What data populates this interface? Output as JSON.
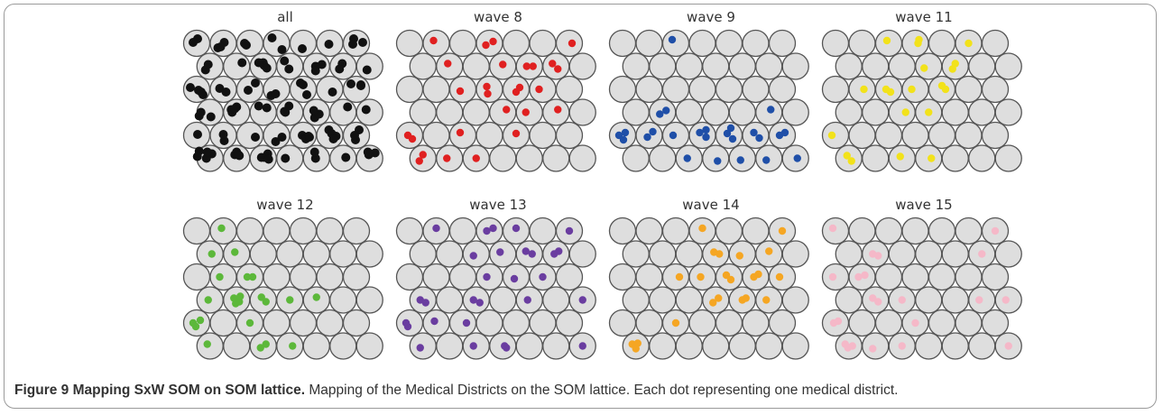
{
  "figure": {
    "caption_title": "Figure 9 Mapping SxW SOM on SOM lattice.",
    "caption_text": " Mapping of the Medical Districts on the SOM lattice. Each dot representing one medical district."
  },
  "panels": [
    {
      "title": "all",
      "dot_color": "#111111"
    },
    {
      "title": "wave 8",
      "dot_color": "#e02020"
    },
    {
      "title": "wave 9",
      "dot_color": "#1f4fa8"
    },
    {
      "title": "wave 11",
      "dot_color": "#f2e21a"
    },
    {
      "title": "wave 12",
      "dot_color": "#5cb83a"
    },
    {
      "title": "wave 13",
      "dot_color": "#6a3da0"
    },
    {
      "title": "wave 14",
      "dot_color": "#f5a623"
    },
    {
      "title": "wave 15",
      "dot_color": "#f5b8c8"
    }
  ],
  "lattice": {
    "cols": 7,
    "rows": 6,
    "cell_fill": "#dedede",
    "cell_stroke": "#555555"
  }
}
